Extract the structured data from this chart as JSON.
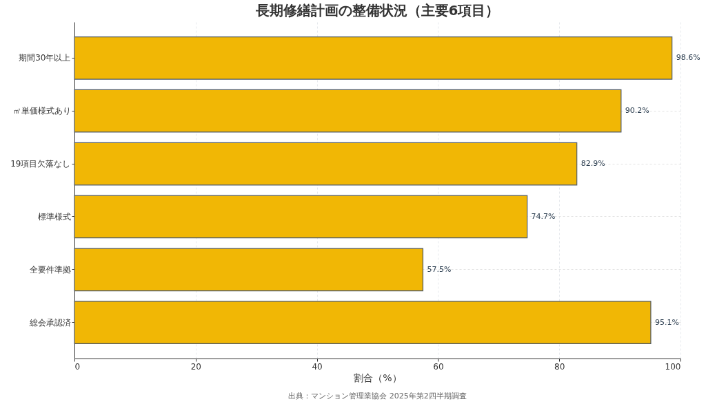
{
  "chart_data": {
    "type": "bar",
    "orientation": "horizontal",
    "title": "長期修繕計画の整備状況（主要6項目）",
    "categories": [
      "期間30年以上",
      "㎡単価様式あり",
      "19項目欠落なし",
      "標準様式",
      "全要件準拠",
      "総会承認済"
    ],
    "values": [
      98.6,
      90.2,
      82.9,
      74.7,
      57.5,
      95.1
    ],
    "value_labels": [
      "98.6%",
      "90.2%",
      "82.9%",
      "74.7%",
      "57.5%",
      "95.1%"
    ],
    "color": "#f1b705",
    "xlabel": "割合（%）",
    "xlim": [
      0,
      100
    ],
    "xticks": [
      0,
      20,
      40,
      60,
      80,
      100
    ],
    "grid": true,
    "annotations": [
      "出典：マンション管理業協会 2025年第2四半期調査"
    ]
  }
}
